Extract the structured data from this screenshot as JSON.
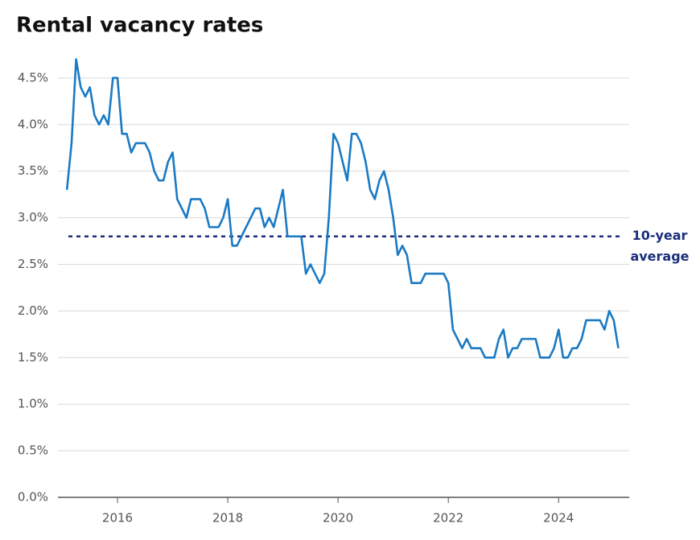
{
  "chart_data": {
    "type": "line",
    "title": "Rental vacancy rates",
    "x": [
      2015.083,
      2015.167,
      2015.25,
      2015.333,
      2015.417,
      2015.5,
      2015.583,
      2015.667,
      2015.75,
      2015.833,
      2015.917,
      2016,
      2016.083,
      2016.167,
      2016.25,
      2016.333,
      2016.417,
      2016.5,
      2016.583,
      2016.667,
      2016.75,
      2016.833,
      2016.917,
      2017,
      2017.083,
      2017.167,
      2017.25,
      2017.333,
      2017.417,
      2017.5,
      2017.583,
      2017.667,
      2017.75,
      2017.833,
      2017.917,
      2018,
      2018.083,
      2018.167,
      2018.25,
      2018.333,
      2018.417,
      2018.5,
      2018.583,
      2018.667,
      2018.75,
      2018.833,
      2018.917,
      2019,
      2019.083,
      2019.167,
      2019.25,
      2019.333,
      2019.417,
      2019.5,
      2019.583,
      2019.667,
      2019.75,
      2019.833,
      2019.917,
      2020,
      2020.083,
      2020.167,
      2020.25,
      2020.333,
      2020.417,
      2020.5,
      2020.583,
      2020.667,
      2020.75,
      2020.833,
      2020.917,
      2021,
      2021.083,
      2021.167,
      2021.25,
      2021.333,
      2021.417,
      2021.5,
      2021.583,
      2021.667,
      2021.75,
      2021.833,
      2021.917,
      2022,
      2022.083,
      2022.167,
      2022.25,
      2022.333,
      2022.417,
      2022.5,
      2022.583,
      2022.667,
      2022.75,
      2022.833,
      2022.917,
      2023,
      2023.083,
      2023.167,
      2023.25,
      2023.333,
      2023.417,
      2023.5,
      2023.583,
      2023.667,
      2023.75,
      2023.833,
      2023.917,
      2024,
      2024.083,
      2024.167,
      2024.25,
      2024.333,
      2024.417,
      2024.5,
      2024.583,
      2024.667,
      2024.75,
      2024.833,
      2024.917,
      2025,
      2025.083
    ],
    "series": [
      {
        "name": "Rental vacancy rate",
        "color": "#1a7ac4",
        "values": [
          3.3,
          3.8,
          4.7,
          4.4,
          4.3,
          4.4,
          4.1,
          4.0,
          4.1,
          4.0,
          4.5,
          4.5,
          3.9,
          3.9,
          3.7,
          3.8,
          3.8,
          3.8,
          3.7,
          3.5,
          3.4,
          3.4,
          3.6,
          3.7,
          3.2,
          3.1,
          3.0,
          3.2,
          3.2,
          3.2,
          3.1,
          2.9,
          2.9,
          2.9,
          3.0,
          3.2,
          2.7,
          2.7,
          2.8,
          2.9,
          3.0,
          3.1,
          3.1,
          2.9,
          3.0,
          2.9,
          3.1,
          3.3,
          2.8,
          2.8,
          2.8,
          2.8,
          2.4,
          2.5,
          2.4,
          2.3,
          2.4,
          3.0,
          3.9,
          3.8,
          3.6,
          3.4,
          3.9,
          3.9,
          3.8,
          3.6,
          3.3,
          3.2,
          3.4,
          3.5,
          3.3,
          3.0,
          2.6,
          2.7,
          2.6,
          2.3,
          2.3,
          2.3,
          2.4,
          2.4,
          2.4,
          2.4,
          2.4,
          2.3,
          1.8,
          1.7,
          1.6,
          1.7,
          1.6,
          1.6,
          1.6,
          1.5,
          1.5,
          1.5,
          1.7,
          1.8,
          1.5,
          1.6,
          1.6,
          1.7,
          1.7,
          1.7,
          1.7,
          1.5,
          1.5,
          1.5,
          1.6,
          1.8,
          1.5,
          1.5,
          1.6,
          1.6,
          1.7,
          1.9,
          1.9,
          1.9,
          1.9,
          1.8,
          2.0,
          1.9,
          1.6
        ]
      }
    ],
    "xlim": [
      2014.92,
      2025.28
    ],
    "xticks": [
      2016,
      2018,
      2020,
      2022,
      2024
    ],
    "ylim": [
      0,
      4.7
    ],
    "yticks": [
      {
        "value": 0,
        "label": "0.0%"
      },
      {
        "value": 0.5,
        "label": "0.5%"
      },
      {
        "value": 1,
        "label": "1.0%"
      },
      {
        "value": 1.5,
        "label": "1.5%"
      },
      {
        "value": 2,
        "label": "2.0%"
      },
      {
        "value": 2.5,
        "label": "2.5%"
      },
      {
        "value": 3,
        "label": "3.0%"
      },
      {
        "value": 3.5,
        "label": "3.5%"
      },
      {
        "value": 4,
        "label": "4.0%"
      },
      {
        "value": 4.5,
        "label": "4.5%"
      }
    ],
    "grid": true,
    "average_line": {
      "value": 2.8,
      "label": [
        "10-year",
        "average"
      ],
      "color": "#1b2f7a"
    }
  }
}
